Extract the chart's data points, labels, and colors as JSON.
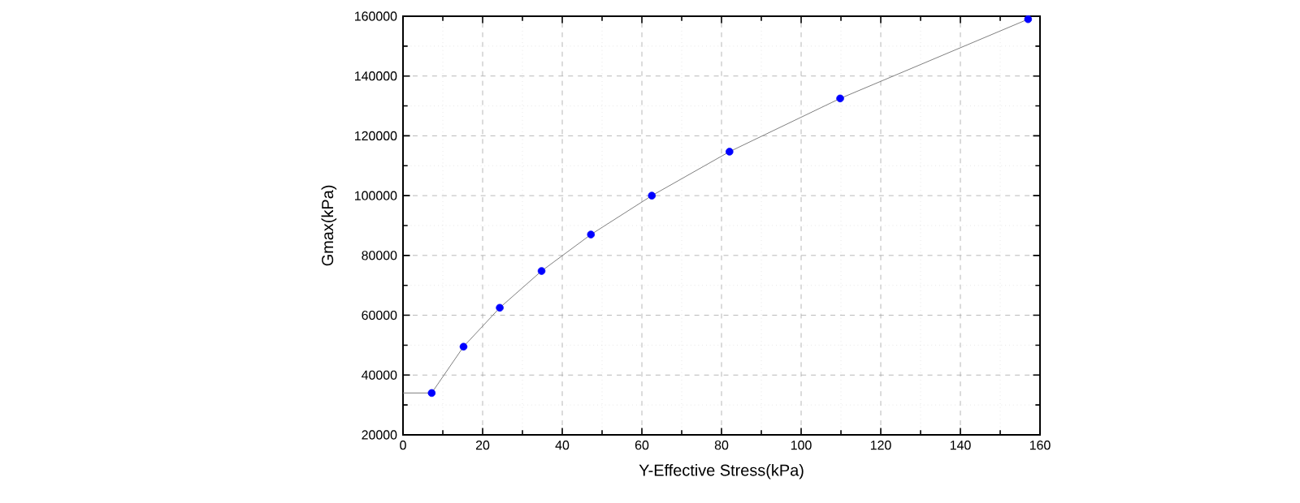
{
  "chart_data": {
    "type": "scatter",
    "xlabel": "Y-Effective Stress(kPa)",
    "ylabel": "Gmax(kPa)",
    "xlim": [
      0,
      160
    ],
    "ylim": [
      20000,
      160000
    ],
    "xticks": [
      0,
      20,
      40,
      60,
      80,
      100,
      120,
      140,
      160
    ],
    "yticks": [
      20000,
      40000,
      60000,
      80000,
      100000,
      120000,
      140000,
      160000
    ],
    "grid": true,
    "marker": "circle",
    "series": [
      {
        "type": "line",
        "color": "#808080",
        "marker": "none",
        "x": [
          0,
          7.2,
          15.2,
          24.3,
          34.8,
          47.2,
          62.5,
          82,
          109.8,
          157
        ],
        "values": [
          34000,
          34000,
          49500,
          62500,
          74800,
          87000,
          100000,
          114700,
          132500,
          159000
        ]
      },
      {
        "color": "#0000ff",
        "x": [
          7.2,
          15.2,
          24.3,
          34.8,
          47.2,
          62.5,
          82,
          109.8,
          157
        ],
        "values": [
          34000,
          49500,
          62500,
          74800,
          87000,
          100000,
          114700,
          132500,
          159000
        ]
      }
    ]
  }
}
